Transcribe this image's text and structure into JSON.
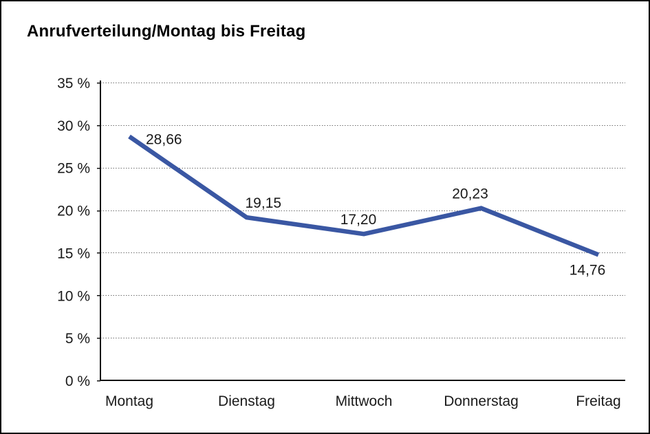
{
  "title": "Anrufverteilung/Montag bis Freitag",
  "chart_data": {
    "type": "line",
    "title": "Anrufverteilung/Montag bis Freitag",
    "categories": [
      "Montag",
      "Dienstag",
      "Mittwoch",
      "Donnerstag",
      "Freitag"
    ],
    "values": [
      28.66,
      19.15,
      17.2,
      20.23,
      14.76
    ],
    "point_labels": [
      "28,66",
      "19,15",
      "17,20",
      "20,23",
      "14,76"
    ],
    "xlabel": "",
    "ylabel": "",
    "ylim": [
      0,
      35
    ],
    "ytick_step": 5,
    "ytick_labels": [
      "0 %",
      "5 %",
      "10 %",
      "15 %",
      "20 %",
      "25 %",
      "30 %",
      "35 %"
    ],
    "grid": "horizontal-dotted",
    "legend_position": "none",
    "colors": {
      "line": "#3A57A3",
      "axis": "#111111",
      "gridline": "#6e6e6e",
      "text": "#1a1a1a",
      "background": "#ffffff"
    }
  }
}
